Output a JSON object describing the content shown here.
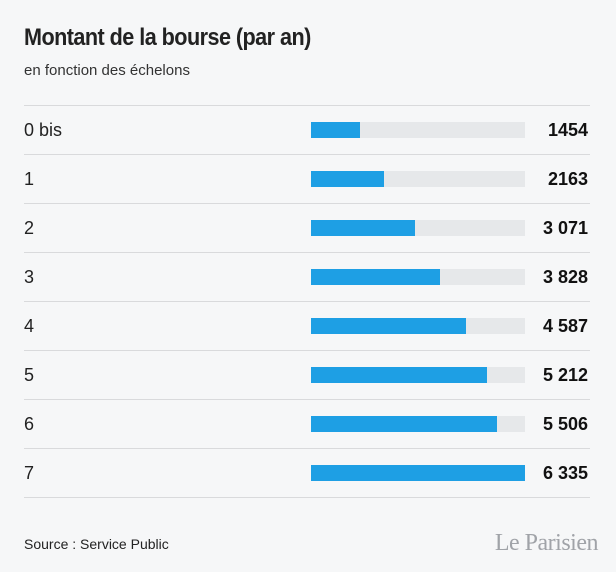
{
  "chart_data": {
    "type": "bar",
    "title": "Montant de la bourse (par an)",
    "subtitle": "en fonction des échelons",
    "categories": [
      "0 bis",
      "1",
      "2",
      "3",
      "4",
      "5",
      "6",
      "7"
    ],
    "values": [
      1454,
      2163,
      3071,
      3828,
      4587,
      5212,
      5506,
      6335
    ],
    "value_labels": [
      "1454",
      "2163",
      "3 071",
      "3 828",
      "4 587",
      "5 212",
      "5 506",
      "6 335"
    ],
    "xlim": [
      0,
      6335
    ],
    "orientation": "horizontal",
    "grid": false,
    "colors": {
      "bar": "#1e9fe4",
      "track": "#e6e8ea"
    }
  },
  "footer": {
    "source": "Source : Service Public",
    "logo": "Le Parisien"
  }
}
